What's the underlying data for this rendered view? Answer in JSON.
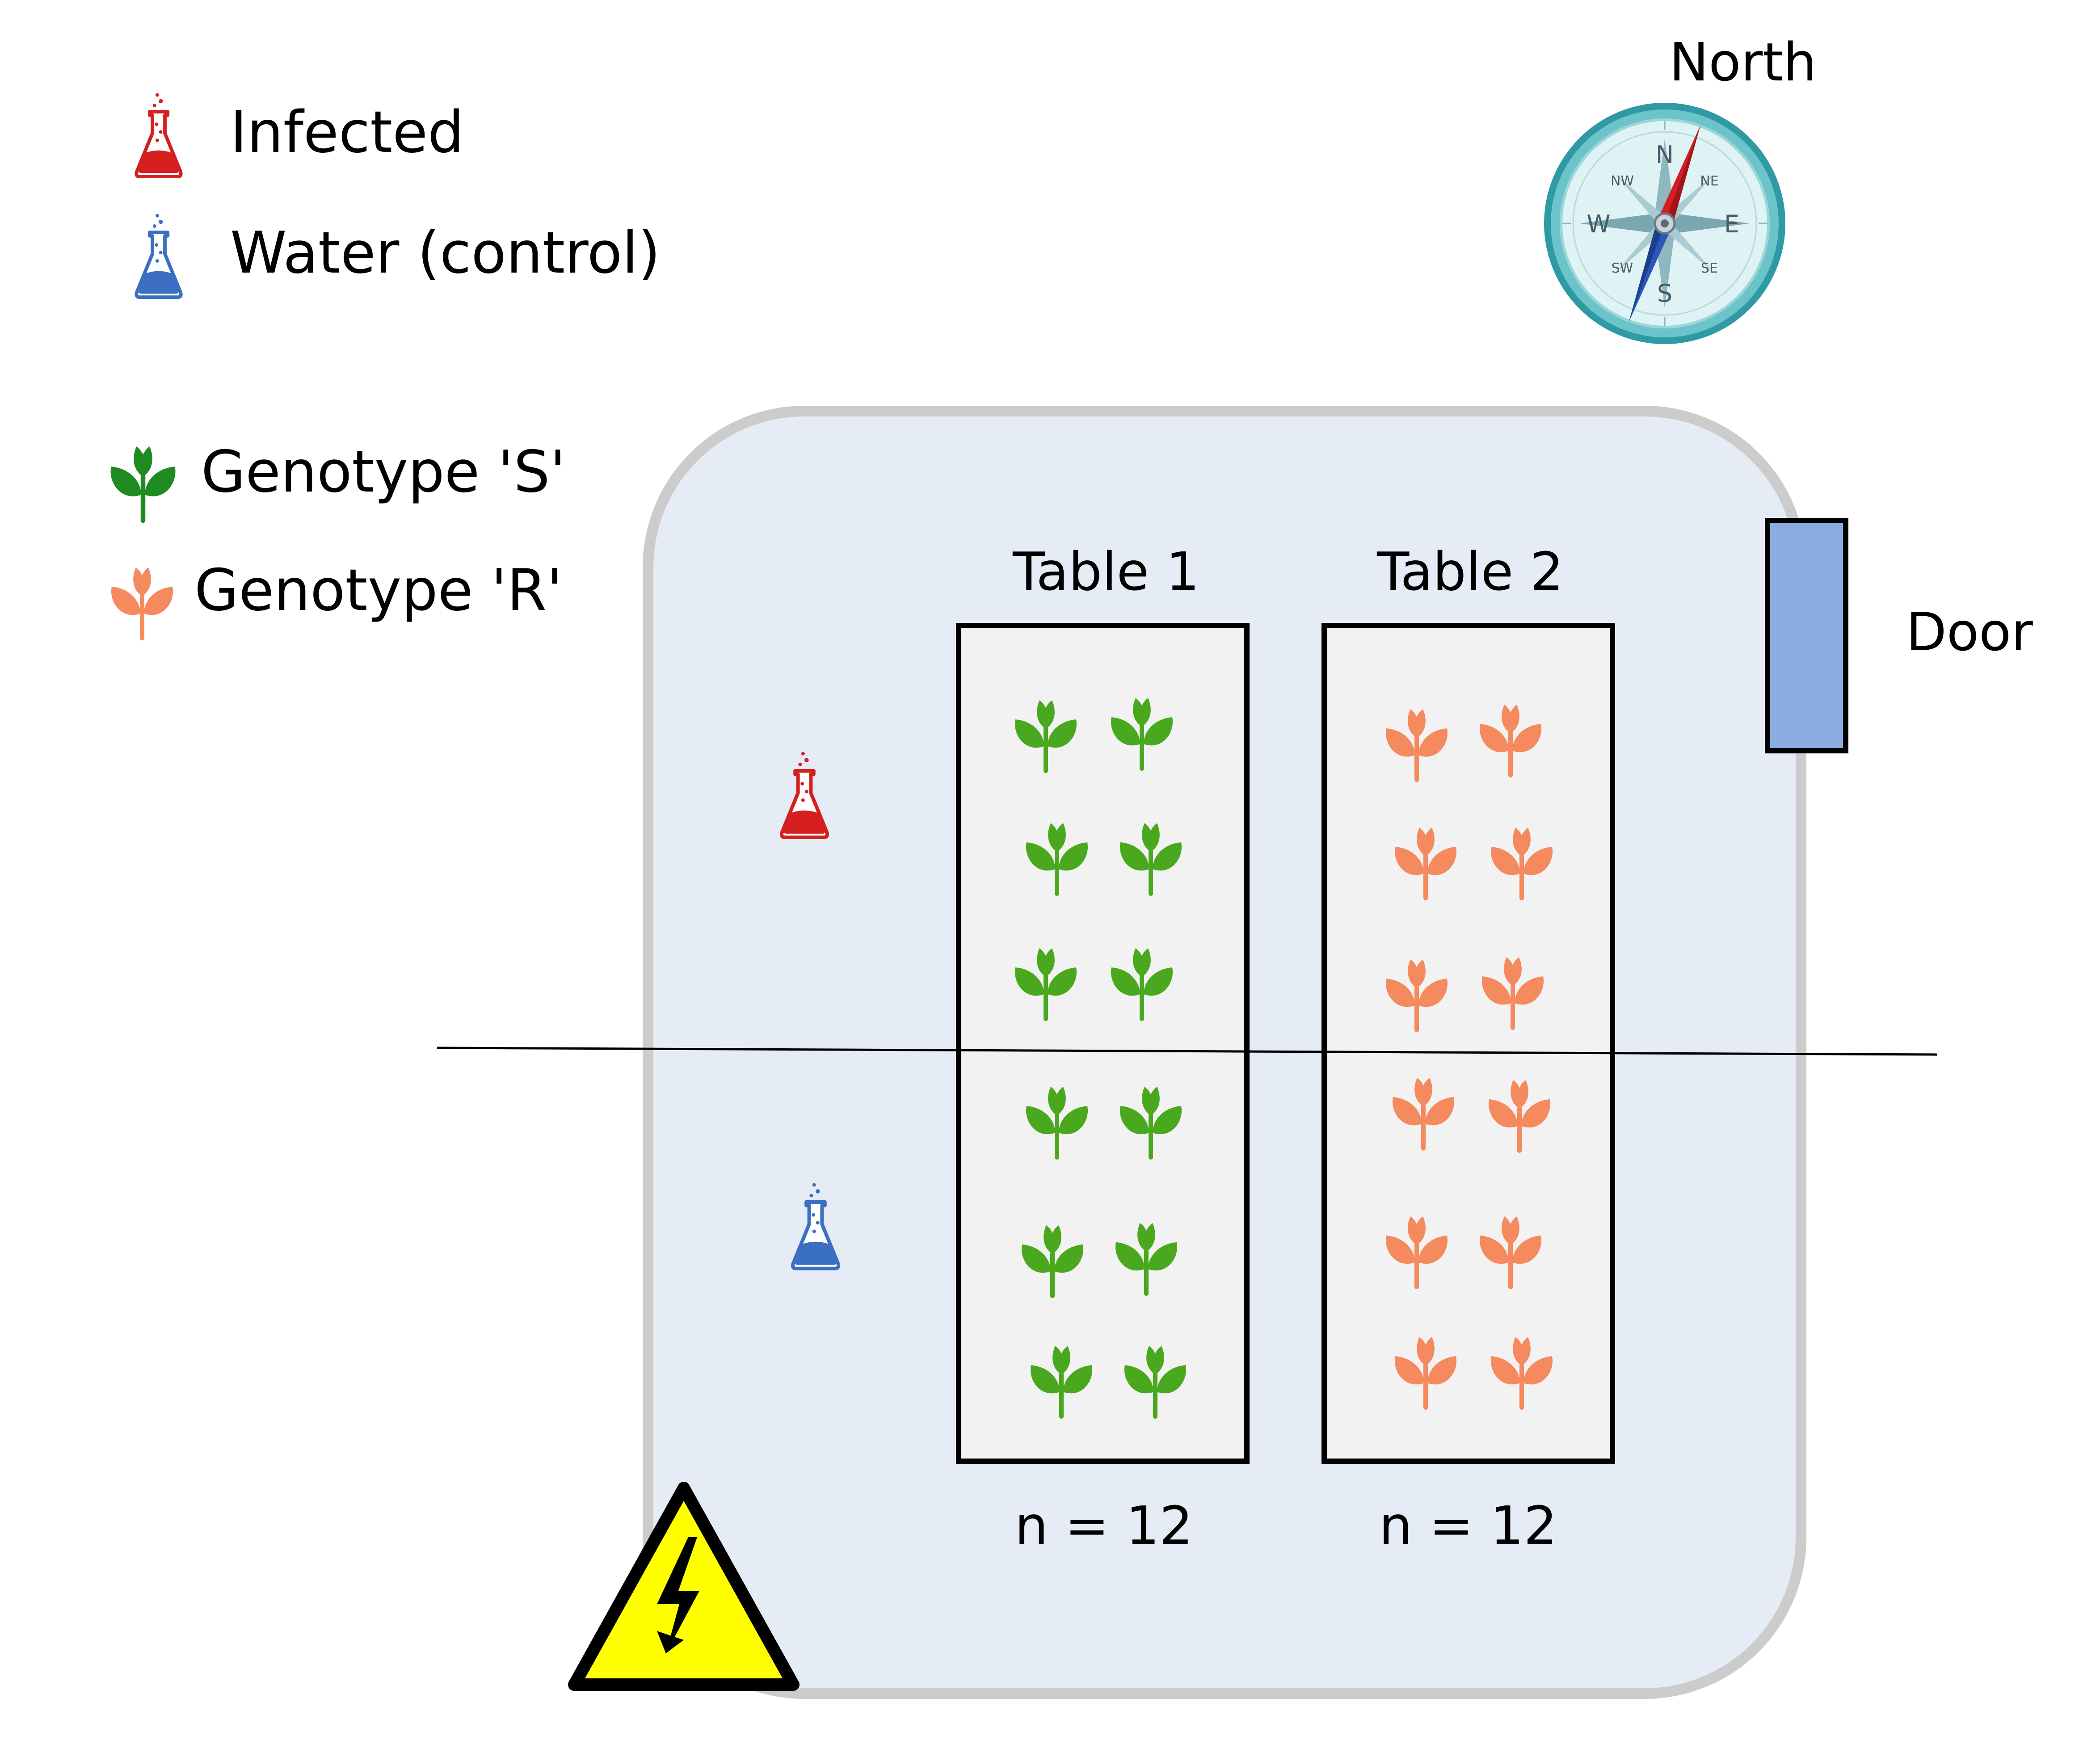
{
  "legend": {
    "infected": "Infected",
    "water": "Water (control)",
    "genotype_s": "Genotype 'S'",
    "genotype_r": "Genotype 'R'"
  },
  "compass": {
    "label": "North",
    "cardinals": {
      "n": "N",
      "e": "E",
      "s": "S",
      "w": "W"
    },
    "intercardinals": {
      "ne": "NE",
      "se": "SE",
      "sw": "SW",
      "nw": "NW"
    }
  },
  "tables": [
    {
      "label": "Table 1",
      "count": "n = 12",
      "genotype": "S"
    },
    {
      "label": "Table 2",
      "count": "n = 12",
      "genotype": "R"
    }
  ],
  "door_label": "Door",
  "colors": {
    "infected": "#d61f1f",
    "water": "#3b6fc2",
    "genotype_s": "#4aa81e",
    "genotype_r": "#f48a5e",
    "room_fill": "#e6ecf5",
    "room_border": "#cccccc",
    "table_fill": "#f2f2f2",
    "door_fill": "#8aacdf",
    "hazard": "#ffff00",
    "compass_ring": "#3fa6ad"
  },
  "icons": {
    "infected": "flask-icon",
    "water": "flask-icon",
    "genotype": "seedling-icon",
    "compass": "compass-icon",
    "hazard": "high-voltage-warning-icon"
  }
}
